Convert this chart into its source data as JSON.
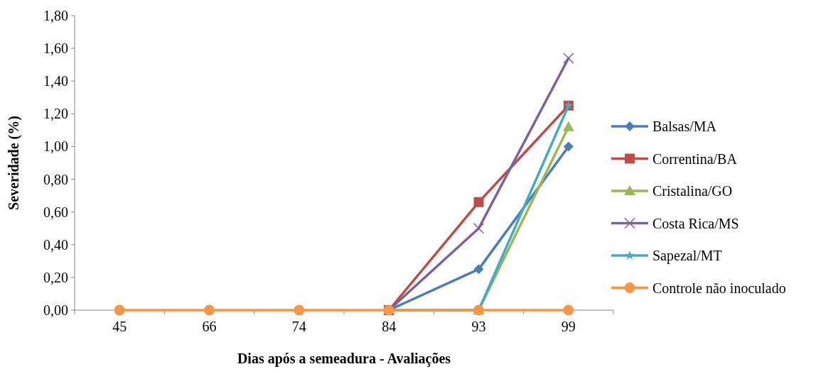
{
  "chart_data": {
    "type": "line",
    "xlabel": "Dias após a semeadura - Avaliações",
    "ylabel": "Severidade (%)",
    "categories": [
      "45",
      "66",
      "74",
      "84",
      "93",
      "99"
    ],
    "ylim": [
      0,
      1.8
    ],
    "yticks": [
      {
        "value": 0,
        "label": "0,00"
      },
      {
        "value": 0.2,
        "label": "0,20"
      },
      {
        "value": 0.4,
        "label": "0,40"
      },
      {
        "value": 0.6,
        "label": "0,60"
      },
      {
        "value": 0.8,
        "label": "0,80"
      },
      {
        "value": 1,
        "label": "1,00"
      },
      {
        "value": 1.2,
        "label": "1,20"
      },
      {
        "value": 1.4,
        "label": "1,40"
      },
      {
        "value": 1.6,
        "label": "1,60"
      },
      {
        "value": 1.8,
        "label": "1,80"
      }
    ],
    "grid": false,
    "legend": "right",
    "series": [
      {
        "name": "Balsas/MA",
        "color": "#4a7ebb",
        "marker": "diamond",
        "values": [
          null,
          null,
          null,
          0,
          0.25,
          1.0
        ]
      },
      {
        "name": "Correntina/BA",
        "color": "#be4b48",
        "marker": "square",
        "values": [
          null,
          null,
          null,
          0,
          0.66,
          1.25
        ]
      },
      {
        "name": "Cristalina/GO",
        "color": "#98b954",
        "marker": "triangle",
        "values": [
          null,
          null,
          null,
          0,
          0,
          1.12
        ]
      },
      {
        "name": "Costa Rica/MS",
        "color": "#7d60a0",
        "marker": "cross",
        "values": [
          null,
          null,
          null,
          0,
          0.5,
          1.54
        ]
      },
      {
        "name": "Sapezal/MT",
        "color": "#46aac5",
        "marker": "star",
        "values": [
          null,
          null,
          null,
          0,
          0,
          1.25
        ]
      },
      {
        "name": "Controle não inoculado",
        "color": "#f79646",
        "marker": "circle",
        "values": [
          0,
          0,
          0,
          0,
          0,
          0
        ]
      }
    ]
  }
}
